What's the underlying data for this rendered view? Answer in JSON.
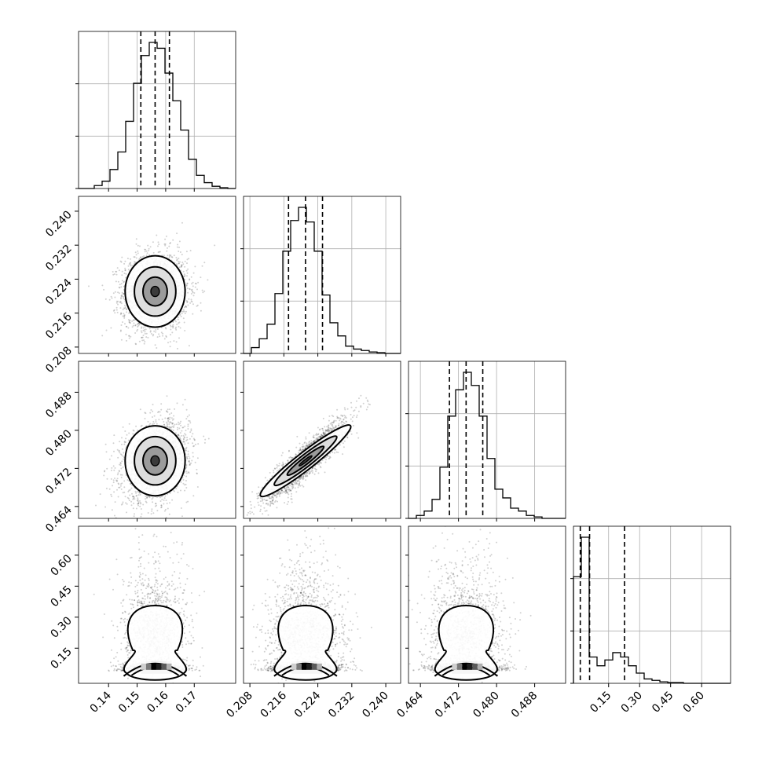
{
  "chart_data": {
    "type": "corner",
    "title": "",
    "parameters": [
      {
        "range": [
          0.1295,
          0.1845
        ],
        "ticks": [
          0.14,
          0.15,
          0.16,
          0.17
        ],
        "tick_labels": [
          "0.14",
          "0.15",
          "0.16",
          "0.17"
        ],
        "quantiles": [
          0.1513,
          0.1563,
          0.1613
        ],
        "histogram": [
          0,
          0,
          2,
          5,
          13,
          25,
          46,
          72,
          91,
          100,
          96,
          79,
          60,
          40,
          20,
          9,
          4,
          1.5,
          0.5,
          0
        ]
      },
      {
        "range": [
          0.2065,
          0.2435
        ],
        "ticks": [
          0.208,
          0.216,
          0.224,
          0.232,
          0.24
        ],
        "tick_labels": [
          "0.208",
          "0.216",
          "0.224",
          "0.232",
          "0.240"
        ],
        "quantiles": [
          0.2171,
          0.2211,
          0.2251
        ],
        "histogram": [
          0,
          4,
          10,
          20,
          41,
          70,
          91,
          100,
          90,
          70,
          40,
          21,
          12,
          5,
          3,
          2,
          1,
          0.5,
          0,
          0
        ]
      },
      {
        "range": [
          0.4615,
          0.4945
        ],
        "ticks": [
          0.464,
          0.472,
          0.48,
          0.488
        ],
        "tick_labels": [
          "0.464",
          "0.472",
          "0.480",
          "0.488"
        ],
        "quantiles": [
          0.4701,
          0.4736,
          0.4771
        ],
        "histogram": [
          0,
          2,
          5,
          13,
          35,
          70,
          88,
          100,
          91,
          70,
          41,
          20,
          14,
          7,
          5,
          2,
          1,
          0,
          0,
          0
        ]
      },
      {
        "range": [
          -0.02,
          0.74
        ],
        "ticks": [
          0.15,
          0.3,
          0.45,
          0.6
        ],
        "tick_labels": [
          "0.15",
          "0.30",
          "0.45",
          "0.60"
        ],
        "quantiles": [
          0.013,
          0.058,
          0.227
        ],
        "histogram": [
          73,
          100,
          18,
          12,
          16,
          21,
          18,
          12,
          7,
          3,
          2,
          1,
          0.5,
          0.5,
          0,
          0,
          0,
          0,
          0,
          0
        ]
      }
    ],
    "left_tick_labels": {
      "1": [
        "0.208",
        "0.216",
        "0.224",
        "0.232",
        "0.240"
      ],
      "2": [
        "0.464",
        "0.472",
        "0.480",
        "0.488"
      ],
      "3": [
        "0.15",
        "0.30",
        "0.45",
        "0.60"
      ]
    },
    "left_ticks": {
      "1": [
        0.208,
        0.216,
        0.224,
        0.232,
        0.24
      ],
      "2": [
        0.464,
        0.472,
        0.48,
        0.488
      ],
      "3": [
        0.15,
        0.3,
        0.45,
        0.6
      ]
    },
    "correlations": {
      "0-1": 0.05,
      "0-2": 0.25,
      "1-2": 0.9,
      "0-3": 0,
      "1-3": 0,
      "2-3": 0
    },
    "grid": true,
    "quantile_style": "dashed",
    "colors": {
      "axes": "#000000",
      "grid": "#b0b0b0",
      "points": "#000000"
    }
  }
}
